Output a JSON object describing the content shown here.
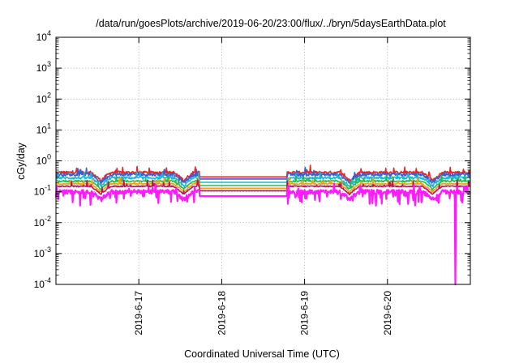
{
  "chart_data": {
    "type": "line",
    "title": "/data/run/goesPlots/archive/2019-06-20/23:00/flux/../bryn/5daysEarthData.plot",
    "xlabel": "Coordinated Universal Time (UTC)",
    "ylabel": "cGy/day",
    "yscale": "log",
    "ylim": [
      0.0001,
      10000
    ],
    "xlim": [
      "2019-06-16 00:00",
      "2019-06-21 00:00"
    ],
    "y_ticks": [
      {
        "base": "10",
        "exp": "-4",
        "value": 0.0001
      },
      {
        "base": "10",
        "exp": "-3",
        "value": 0.001
      },
      {
        "base": "10",
        "exp": "-2",
        "value": 0.01
      },
      {
        "base": "10",
        "exp": "-1",
        "value": 0.1
      },
      {
        "base": "10",
        "exp": "0",
        "value": 1
      },
      {
        "base": "10",
        "exp": "1",
        "value": 10
      },
      {
        "base": "10",
        "exp": "2",
        "value": 100
      },
      {
        "base": "10",
        "exp": "3",
        "value": 1000
      },
      {
        "base": "10",
        "exp": "4",
        "value": 10000
      }
    ],
    "x_ticks": [
      {
        "label": "2019-6-17",
        "value": "2019-06-17 00:00"
      },
      {
        "label": "2019-6-18",
        "value": "2019-06-18 00:00"
      },
      {
        "label": "2019-6-19",
        "value": "2019-06-19 00:00"
      },
      {
        "label": "2019-6-20",
        "value": "2019-06-20 00:00"
      }
    ],
    "grid": true,
    "data_gap": [
      "2019-06-17 17:30",
      "2019-06-18 19:00"
    ],
    "series": [
      {
        "color": "#e5252a",
        "level": 0.42,
        "noise": 0.1
      },
      {
        "color": "#3b5fd1",
        "level": 0.36,
        "noise": 0.11
      },
      {
        "color": "#19b8d6",
        "level": 0.28,
        "noise": 0.09
      },
      {
        "color": "#2ab84a",
        "level": 0.22,
        "noise": 0.06
      },
      {
        "color": "#f0a21c",
        "level": 0.18,
        "noise": 0.05
      },
      {
        "color": "#c0135a",
        "level": 0.15,
        "noise": 0.04
      },
      {
        "color": "#ff1aff",
        "level": 0.1,
        "noise": 0.16
      }
    ],
    "magenta_dropout": {
      "time": "2019-06-20 19:40",
      "min": 0.0001
    }
  }
}
